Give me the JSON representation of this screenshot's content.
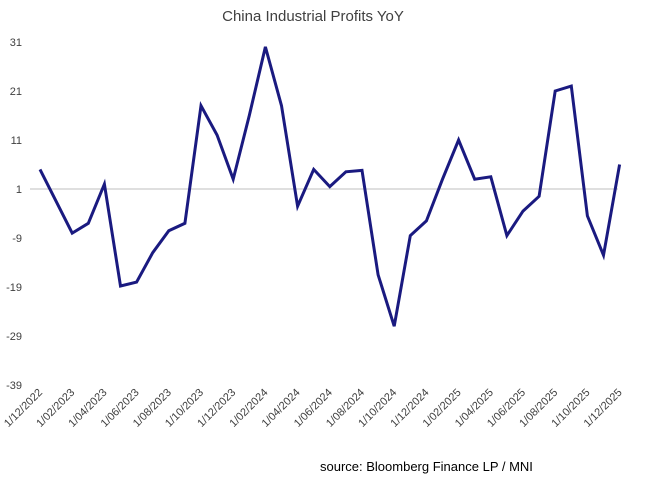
{
  "chart_data": {
    "type": "line",
    "title": "China Industrial Profits YoY",
    "source": "source: Bloomberg Finance LP / MNI",
    "xlabel": "",
    "ylabel": "",
    "ylim": [
      -39,
      31
    ],
    "yticks": [
      31,
      21,
      11,
      1,
      -9,
      -19,
      -29,
      -39
    ],
    "xtick_labels": [
      "1/12/2022",
      "1/02/2023",
      "1/04/2023",
      "1/06/2023",
      "1/08/2023",
      "1/10/2023",
      "1/12/2023",
      "1/02/2024",
      "1/04/2024",
      "1/06/2024",
      "1/08/2024",
      "1/10/2024",
      "1/12/2024",
      "1/02/2025",
      "1/04/2025",
      "1/06/2025",
      "1/08/2025",
      "1/10/2025",
      "1/12/2025"
    ],
    "grid": false,
    "series": [
      {
        "name": "China Industrial Profits YoY",
        "color": "#1a1a80",
        "x": [
          0,
          2,
          3,
          4,
          5,
          6,
          7,
          8,
          9,
          10,
          11,
          12,
          13,
          14,
          15,
          16,
          17,
          18,
          19,
          20,
          21,
          22,
          23,
          24,
          25,
          26,
          27,
          28,
          29,
          30,
          31,
          32,
          33,
          34,
          35,
          36
        ],
        "values": [
          5.0,
          -8.0,
          -6.0,
          2.0,
          -18.8,
          -18.0,
          -12.0,
          -7.5,
          -6.0,
          18.0,
          12.0,
          3.0,
          16.0,
          30.0,
          18.0,
          -2.5,
          5.0,
          1.5,
          4.5,
          4.8,
          -16.5,
          -27.0,
          -8.5,
          -5.5,
          3.0,
          11.0,
          3.0,
          3.5,
          -8.5,
          -3.5,
          -0.5,
          21.0,
          22.0,
          -4.5,
          -12.5,
          6.0
        ]
      }
    ]
  }
}
